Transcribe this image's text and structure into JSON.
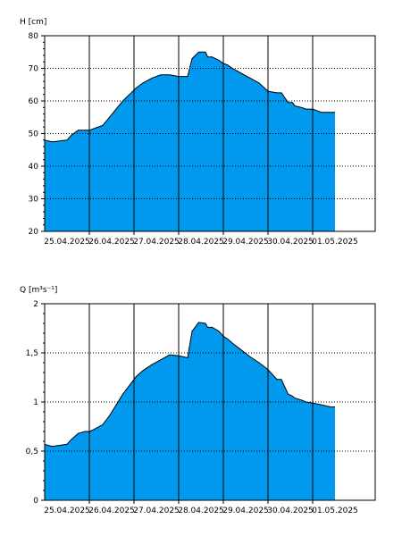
{
  "chart_data": [
    {
      "type": "area",
      "ylabel": "H [cm]",
      "ylim": [
        20,
        80
      ],
      "yticks": [
        20,
        30,
        40,
        50,
        60,
        70,
        80
      ],
      "ytick_labels": [
        "20",
        "30",
        "40",
        "50",
        "60",
        "70",
        "80"
      ],
      "xlim": [
        0,
        7.4
      ],
      "xticks": [
        0.5,
        1.5,
        2.5,
        3.5,
        4.5,
        5.5,
        6.5
      ],
      "xtick_labels": [
        "25.04.2025",
        "26.04.2025",
        "27.04.2025",
        "28.04.2025",
        "29.04.2025",
        "30.04.2025",
        "01.05.2025"
      ],
      "day_lines": [
        1,
        2,
        3,
        4,
        5,
        6
      ],
      "fill_color": "#0099ee",
      "grid": true,
      "x": [
        0,
        0.15,
        0.2,
        0.5,
        0.6,
        0.75,
        0.9,
        1.0,
        1.1,
        1.3,
        1.45,
        1.6,
        1.75,
        1.9,
        2.05,
        2.2,
        2.4,
        2.6,
        2.8,
        3.0,
        3.2,
        3.3,
        3.45,
        3.6,
        3.65,
        3.75,
        3.9,
        4.0,
        4.1,
        4.2,
        4.4,
        4.6,
        4.8,
        5.0,
        5.2,
        5.3,
        5.45,
        5.55,
        5.6,
        5.75,
        5.85,
        6.0,
        6.2,
        6.4,
        6.5
      ],
      "y": [
        48,
        47.5,
        47.5,
        48,
        49.5,
        51,
        51,
        51,
        51.5,
        52.5,
        55,
        57.5,
        60,
        62,
        64,
        65.5,
        67,
        68,
        68,
        67.5,
        67.5,
        73,
        75,
        75,
        73.5,
        73.5,
        72.5,
        71.5,
        71,
        70,
        68.5,
        67,
        65.5,
        63,
        62.5,
        62.5,
        59.5,
        59.5,
        58.5,
        58,
        57.5,
        57.5,
        56.5,
        56.5,
        56.5
      ]
    },
    {
      "type": "area",
      "ylabel": "Q [m³s⁻¹]",
      "ylim": [
        0,
        2
      ],
      "yticks": [
        0,
        0.5,
        1,
        1.5,
        2
      ],
      "ytick_labels": [
        "0",
        "0,5",
        "1",
        "1,5",
        "2"
      ],
      "xlim": [
        0,
        7.4
      ],
      "xticks": [
        0.5,
        1.5,
        2.5,
        3.5,
        4.5,
        5.5,
        6.5
      ],
      "xtick_labels": [
        "25.04.2025",
        "26.04.2025",
        "27.04.2025",
        "28.04.2025",
        "29.04.2025",
        "30.04.2025",
        "01.05.2025"
      ],
      "day_lines": [
        1,
        2,
        3,
        4,
        5,
        6
      ],
      "fill_color": "#0099ee",
      "grid": true,
      "x": [
        0,
        0.15,
        0.2,
        0.5,
        0.6,
        0.75,
        0.9,
        1.0,
        1.1,
        1.3,
        1.45,
        1.6,
        1.75,
        1.9,
        2.05,
        2.2,
        2.4,
        2.6,
        2.8,
        3.0,
        3.2,
        3.3,
        3.45,
        3.6,
        3.65,
        3.75,
        3.9,
        4.0,
        4.1,
        4.2,
        4.4,
        4.6,
        4.8,
        5.0,
        5.2,
        5.3,
        5.45,
        5.55,
        5.6,
        5.75,
        5.85,
        6.0,
        6.2,
        6.4,
        6.5
      ],
      "y": [
        0.57,
        0.55,
        0.55,
        0.57,
        0.62,
        0.68,
        0.7,
        0.7,
        0.72,
        0.77,
        0.86,
        0.97,
        1.08,
        1.17,
        1.26,
        1.32,
        1.38,
        1.43,
        1.48,
        1.47,
        1.45,
        1.72,
        1.81,
        1.8,
        1.76,
        1.76,
        1.72,
        1.67,
        1.64,
        1.6,
        1.53,
        1.46,
        1.4,
        1.33,
        1.23,
        1.23,
        1.08,
        1.06,
        1.04,
        1.02,
        1.0,
        0.99,
        0.97,
        0.95,
        0.95
      ]
    }
  ]
}
